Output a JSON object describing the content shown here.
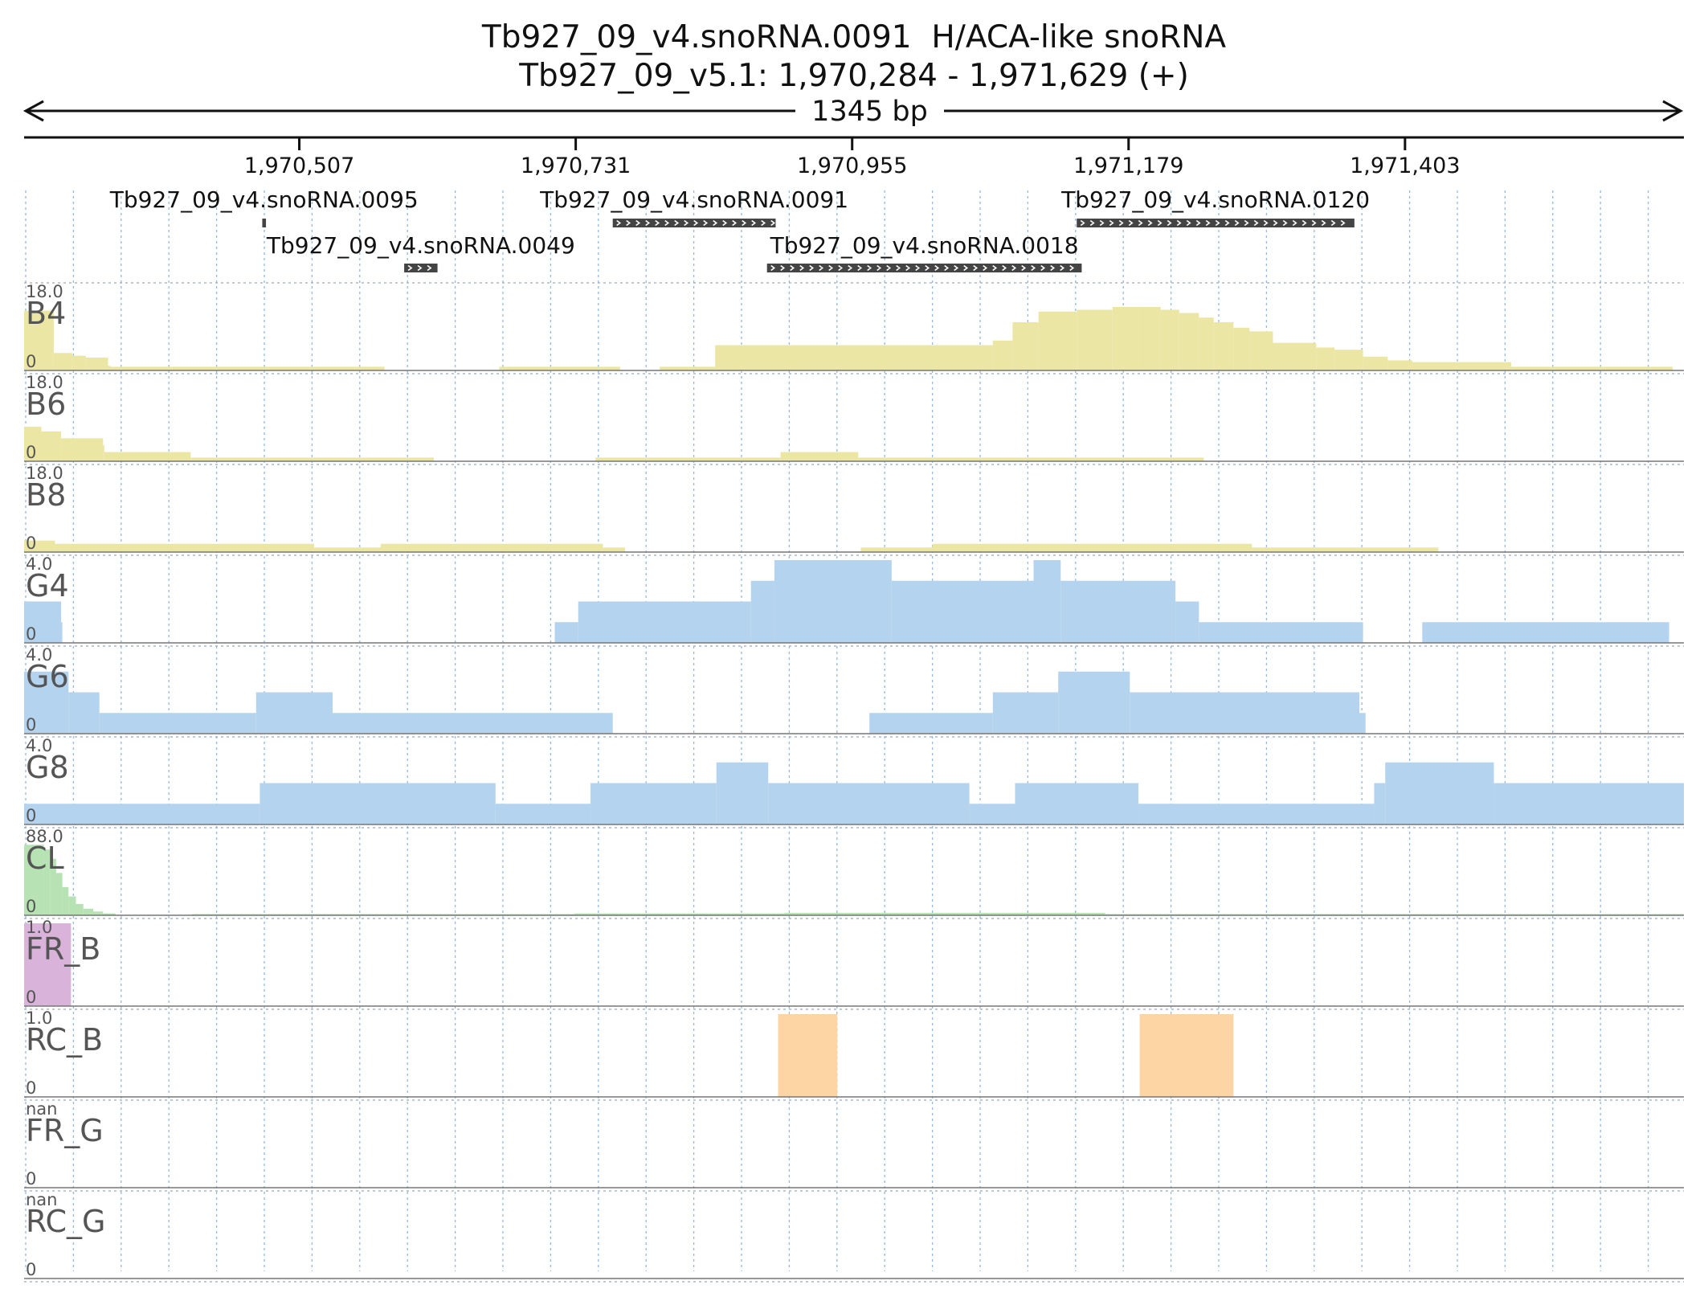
{
  "header": {
    "title": "Tb927_09_v4.snoRNA.0091  H/ACA-like snoRNA",
    "location": "Tb927_09_v5.1: 1,970,284 - 1,971,629 (+)",
    "span": "1345 bp"
  },
  "region": {
    "start": 1970284,
    "end": 1971629
  },
  "axis_ticks": [
    {
      "pos": 1970507,
      "label": "1,970,507"
    },
    {
      "pos": 1970731,
      "label": "1,970,731"
    },
    {
      "pos": 1970955,
      "label": "1,970,955"
    },
    {
      "pos": 1971179,
      "label": "1,971,179"
    },
    {
      "pos": 1971403,
      "label": "1,971,403"
    }
  ],
  "genes": [
    {
      "name": "Tb927_09_v4.snoRNA.0095",
      "start": 1970477,
      "end": 1970480,
      "row": 0
    },
    {
      "name": "Tb927_09_v4.snoRNA.0049",
      "start": 1970592,
      "end": 1970619,
      "row": 1
    },
    {
      "name": "Tb927_09_v4.snoRNA.0091",
      "start": 1970761,
      "end": 1970893,
      "row": 0
    },
    {
      "name": "Tb927_09_v4.snoRNA.0018",
      "start": 1970886,
      "end": 1971141,
      "row": 1
    },
    {
      "name": "Tb927_09_v4.snoRNA.0120",
      "start": 1971137,
      "end": 1971362,
      "row": 0
    }
  ],
  "colors": {
    "B": "#ece6a4",
    "G": "#b3d3ee",
    "CL": "#b6e2b4",
    "FR_B": "#d9b3d9",
    "RC_B": "#fdd5a5",
    "gene": "#444444",
    "grid": "#6fa3d4"
  },
  "chart_data": {
    "type": "area",
    "x_unit": "bp",
    "tracks": [
      {
        "name": "B4",
        "max_label": "18.0",
        "min_label": "0",
        "max": 18,
        "color": "B",
        "segments": [
          [
            1970284,
            1970308,
            13
          ],
          [
            1970308,
            1970323,
            3.8
          ],
          [
            1970323,
            1970334,
            3.2
          ],
          [
            1970334,
            1970352,
            2.8
          ],
          [
            1970352,
            1970354,
            1.0
          ],
          [
            1970354,
            1970576,
            0.8
          ],
          [
            1970669,
            1970767,
            0.8
          ],
          [
            1970799,
            1970844,
            0.8
          ],
          [
            1970844,
            1970895,
            5.5
          ],
          [
            1970895,
            1971069,
            5.5
          ],
          [
            1971069,
            1971085,
            6.5
          ],
          [
            1971085,
            1971106,
            10.5
          ],
          [
            1971106,
            1971137,
            12.8
          ],
          [
            1971137,
            1971166,
            13.2
          ],
          [
            1971166,
            1971187,
            13.8
          ],
          [
            1971187,
            1971205,
            13.8
          ],
          [
            1971205,
            1971220,
            13.2
          ],
          [
            1971220,
            1971236,
            12.5
          ],
          [
            1971236,
            1971248,
            11.5
          ],
          [
            1971248,
            1971264,
            10.5
          ],
          [
            1971264,
            1971277,
            9.3
          ],
          [
            1971277,
            1971296,
            8.5
          ],
          [
            1971296,
            1971331,
            6.0
          ],
          [
            1971331,
            1971346,
            5.0
          ],
          [
            1971346,
            1971369,
            4.5
          ],
          [
            1971369,
            1971389,
            3.0
          ],
          [
            1971389,
            1971409,
            2.2
          ],
          [
            1971409,
            1971489,
            1.8
          ],
          [
            1971489,
            1971620,
            0.8
          ]
        ]
      },
      {
        "name": "B6",
        "max_label": "18.0",
        "min_label": "0",
        "max": 18,
        "color": "B",
        "segments": [
          [
            1970284,
            1970298,
            7.5
          ],
          [
            1970298,
            1970314,
            6.5
          ],
          [
            1970314,
            1970348,
            5.0
          ],
          [
            1970348,
            1970349,
            3.5
          ],
          [
            1970349,
            1970419,
            2.0
          ],
          [
            1970419,
            1970616,
            0.8
          ],
          [
            1970747,
            1970897,
            0.8
          ],
          [
            1970897,
            1970960,
            2.0
          ],
          [
            1970960,
            1971240,
            0.8
          ]
        ]
      },
      {
        "name": "B8",
        "max_label": "18.0",
        "min_label": "0",
        "max": 18,
        "color": "B",
        "segments": [
          [
            1970284,
            1970309,
            2.5
          ],
          [
            1970309,
            1970519,
            1.8
          ],
          [
            1970519,
            1970573,
            1.0
          ],
          [
            1970573,
            1970753,
            1.8
          ],
          [
            1970753,
            1970771,
            1.0
          ],
          [
            1970962,
            1971020,
            1.0
          ],
          [
            1971020,
            1971279,
            1.8
          ],
          [
            1971279,
            1971430,
            1.0
          ]
        ]
      },
      {
        "name": "G4",
        "max_label": "4.0",
        "min_label": "0",
        "max": 4,
        "color": "G",
        "segments": [
          [
            1970284,
            1970314,
            2
          ],
          [
            1970314,
            1970315,
            1
          ],
          [
            1970714,
            1970733,
            1
          ],
          [
            1970733,
            1970873,
            2
          ],
          [
            1970873,
            1970892,
            3
          ],
          [
            1970892,
            1970987,
            4
          ],
          [
            1970987,
            1971102,
            3
          ],
          [
            1971102,
            1971124,
            4
          ],
          [
            1971124,
            1971217,
            3
          ],
          [
            1971217,
            1971236,
            2
          ],
          [
            1971236,
            1971369,
            1
          ],
          [
            1971417,
            1971617,
            1
          ]
        ]
      },
      {
        "name": "G6",
        "max_label": "4.0",
        "min_label": "0",
        "max": 4,
        "color": "G",
        "segments": [
          [
            1970284,
            1970320,
            3
          ],
          [
            1970320,
            1970345,
            2
          ],
          [
            1970345,
            1970472,
            1
          ],
          [
            1970472,
            1970534,
            2
          ],
          [
            1970534,
            1970761,
            1
          ],
          [
            1970969,
            1971069,
            1
          ],
          [
            1971069,
            1971122,
            2
          ],
          [
            1971122,
            1971180,
            3
          ],
          [
            1971180,
            1971366,
            2
          ],
          [
            1971366,
            1971371,
            1
          ]
        ]
      },
      {
        "name": "G8",
        "max_label": "4.0",
        "min_label": "0",
        "max": 4,
        "color": "G",
        "segments": [
          [
            1970284,
            1970475,
            1
          ],
          [
            1970475,
            1970666,
            2
          ],
          [
            1970666,
            1970743,
            1
          ],
          [
            1970743,
            1970845,
            2
          ],
          [
            1970845,
            1970887,
            3
          ],
          [
            1970887,
            1970949,
            2
          ],
          [
            1970949,
            1971050,
            2
          ],
          [
            1971050,
            1971087,
            1
          ],
          [
            1971087,
            1971187,
            2
          ],
          [
            1971187,
            1971378,
            1
          ],
          [
            1971378,
            1971387,
            2
          ],
          [
            1971387,
            1971475,
            3
          ],
          [
            1971475,
            1971629,
            2
          ]
        ]
      },
      {
        "name": "CL",
        "max_label": "88.0",
        "min_label": "0",
        "max": 88,
        "color": "CL",
        "segments": [
          [
            1970284,
            1970300,
            75
          ],
          [
            1970300,
            1970305,
            70
          ],
          [
            1970305,
            1970310,
            60
          ],
          [
            1970310,
            1970315,
            45
          ],
          [
            1970315,
            1970320,
            30
          ],
          [
            1970320,
            1970326,
            20
          ],
          [
            1970326,
            1970332,
            12
          ],
          [
            1970332,
            1970340,
            7
          ],
          [
            1970340,
            1970348,
            4
          ],
          [
            1970348,
            1970358,
            2
          ],
          [
            1970420,
            1970980,
            0.8
          ],
          [
            1970730,
            1970900,
            2
          ],
          [
            1970900,
            1971160,
            2.5
          ],
          [
            1971160,
            1971629,
            0.6
          ]
        ]
      },
      {
        "name": "FR_B",
        "max_label": "1.0",
        "min_label": "0",
        "max": 1,
        "color": "FR_B",
        "segments": [
          [
            1970284,
            1970322,
            1
          ]
        ]
      },
      {
        "name": "RC_B",
        "max_label": "1.0",
        "min_label": "0",
        "max": 1,
        "color": "RC_B",
        "segments": [
          [
            1970895,
            1970943,
            1
          ],
          [
            1971188,
            1971264,
            1
          ]
        ]
      },
      {
        "name": "FR_G",
        "max_label": "nan",
        "min_label": "0",
        "max": 1,
        "color": "",
        "segments": []
      },
      {
        "name": "RC_G",
        "max_label": "nan",
        "min_label": "0",
        "max": 1,
        "color": "",
        "segments": []
      }
    ]
  }
}
